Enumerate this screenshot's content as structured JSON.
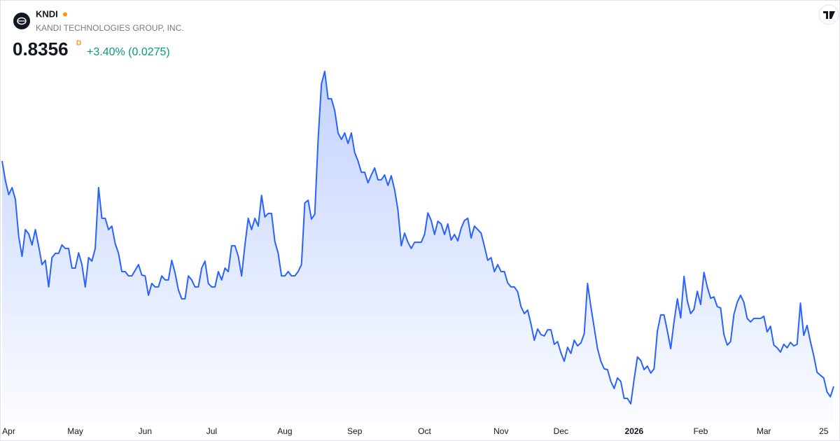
{
  "chart_data": {
    "type": "area",
    "title": "KNDI",
    "subtitle": "KANDI TECHNOLOGIES GROUP, INC.",
    "price_label": "0.8356",
    "interval": "D",
    "change_label": "+3.40% (0.0275)",
    "color": "#2962ff",
    "change_color": "#089981",
    "values": [
      1.673,
      1.6,
      1.548,
      1.574,
      1.53,
      1.392,
      1.319,
      1.418,
      1.402,
      1.361,
      1.418,
      1.356,
      1.288,
      1.304,
      1.205,
      1.314,
      1.33,
      1.33,
      1.361,
      1.348,
      1.348,
      1.275,
      1.275,
      1.332,
      1.288,
      1.205,
      1.314,
      1.301,
      1.348,
      1.574,
      1.46,
      1.46,
      1.418,
      1.431,
      1.366,
      1.33,
      1.262,
      1.262,
      1.246,
      1.246,
      1.267,
      1.288,
      1.249,
      1.246,
      1.174,
      1.218,
      1.205,
      1.205,
      1.246,
      1.231,
      1.231,
      1.304,
      1.257,
      1.194,
      1.161,
      1.161,
      1.246,
      1.231,
      1.205,
      1.205,
      1.275,
      1.301,
      1.218,
      1.205,
      1.205,
      1.262,
      1.231,
      1.275,
      1.262,
      1.358,
      1.358,
      1.319,
      1.246,
      1.361,
      1.46,
      1.418,
      1.46,
      1.431,
      1.545,
      1.465,
      1.478,
      1.478,
      1.374,
      1.33,
      1.246,
      1.246,
      1.262,
      1.246,
      1.246,
      1.262,
      1.288,
      1.517,
      1.527,
      1.457,
      1.475,
      1.751,
      1.959,
      2.006,
      1.904,
      1.904,
      1.86,
      1.777,
      1.753,
      1.777,
      1.738,
      1.777,
      1.704,
      1.673,
      1.631,
      1.631,
      1.592,
      1.621,
      1.647,
      1.603,
      1.603,
      1.621,
      1.582,
      1.618,
      1.566,
      1.491,
      1.358,
      1.405,
      1.371,
      1.348,
      1.371,
      1.371,
      1.371,
      1.4,
      1.48,
      1.452,
      1.4,
      1.449,
      1.439,
      1.4,
      1.439,
      1.379,
      1.4,
      1.376,
      1.423,
      1.452,
      1.46,
      1.387,
      1.431,
      1.418,
      1.405,
      1.356,
      1.304,
      1.314,
      1.262,
      1.288,
      1.262,
      1.262,
      1.22,
      1.205,
      1.205,
      1.187,
      1.132,
      1.106,
      1.119,
      1.067,
      1.007,
      1.049,
      1.028,
      1.023,
      1.046,
      1.046,
      0.992,
      1.002,
      0.96,
      0.929,
      0.981,
      0.958,
      1.007,
      0.986,
      0.997,
      1.031,
      1.218,
      1.132,
      1.054,
      0.976,
      0.929,
      0.901,
      0.898,
      0.854,
      0.828,
      0.867,
      0.854,
      0.791,
      0.791,
      0.771,
      0.862,
      0.945,
      0.932,
      0.898,
      0.911,
      0.885,
      0.901,
      1.041,
      1.101,
      1.101,
      1.041,
      0.976,
      1.075,
      1.161,
      1.09,
      1.244,
      1.153,
      1.106,
      1.122,
      1.189,
      1.14,
      1.259,
      1.205,
      1.163,
      1.168,
      1.132,
      1.127,
      1.028,
      0.989,
      1.002,
      1.103,
      1.148,
      1.174,
      1.148,
      1.088,
      1.075,
      1.088,
      1.088,
      1.088,
      1.096,
      1.038,
      1.059,
      0.989,
      0.979,
      0.963,
      0.992,
      0.979,
      0.999,
      0.986,
      0.992,
      1.145,
      1.025,
      1.062,
      1.002,
      0.95,
      0.888,
      0.877,
      0.867,
      0.815,
      0.797,
      0.8356
    ],
    "xlim": [
      0,
      250
    ],
    "ylim": [
      0.7108,
      2.2708
    ],
    "xticks": [
      {
        "value": 2,
        "label": "Apr"
      },
      {
        "value": 22,
        "label": "May"
      },
      {
        "value": 43,
        "label": "Jun"
      },
      {
        "value": 63,
        "label": "Jul"
      },
      {
        "value": 85,
        "label": "Aug"
      },
      {
        "value": 106,
        "label": "Sep"
      },
      {
        "value": 127,
        "label": "Oct"
      },
      {
        "value": 150,
        "label": "Nov"
      },
      {
        "value": 168,
        "label": "Dec"
      },
      {
        "value": 190,
        "label": "2026",
        "bold": true
      },
      {
        "value": 210,
        "label": "Feb"
      },
      {
        "value": 229,
        "label": "Mar"
      },
      {
        "value": 247,
        "label": "25"
      }
    ]
  }
}
